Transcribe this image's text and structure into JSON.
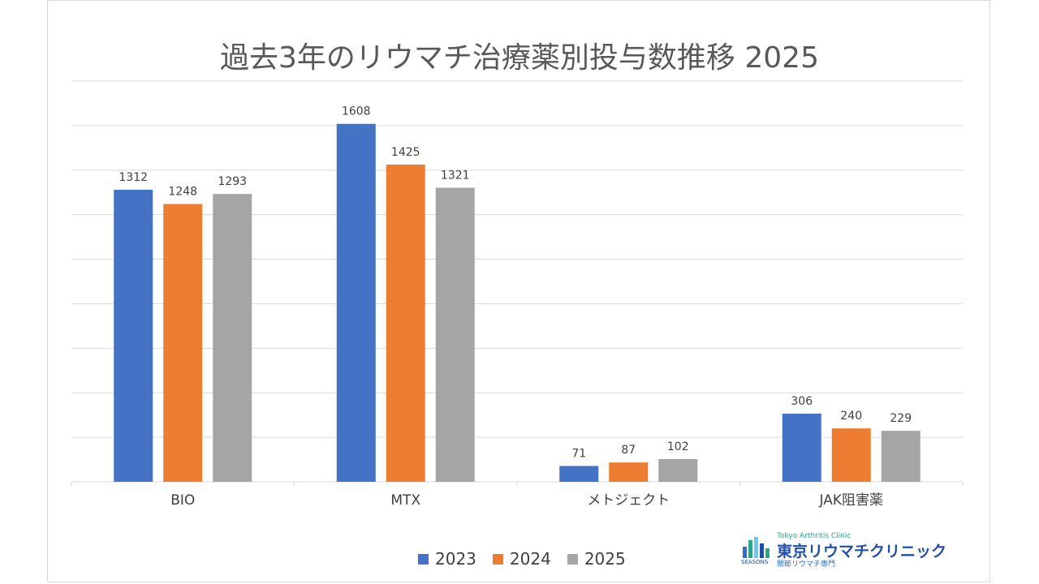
{
  "chart_data": {
    "type": "bar",
    "title": "過去3年のリウマチ治療薬別投与数推移  2025",
    "categories": [
      "BIO",
      "MTX",
      "メトジェクト",
      "JAK阻害薬"
    ],
    "series": [
      {
        "name": "2023",
        "values": [
          1312,
          1608,
          71,
          306
        ],
        "color": "#4472c4"
      },
      {
        "name": "2024",
        "values": [
          1248,
          1425,
          87,
          240
        ],
        "color": "#ed7d31"
      },
      {
        "name": "2025",
        "values": [
          1293,
          1321,
          102,
          229
        ],
        "color": "#a5a5a5"
      }
    ],
    "ylim": [
      0,
      1800
    ],
    "grid": true,
    "legend": "bottom",
    "data_labels": true
  },
  "logo": {
    "english": "Tokyo Arthritis Clinic",
    "name": "東京リウマチクリニック",
    "subtitle": "関節リウマチ専門",
    "mark": "SEASONS"
  }
}
